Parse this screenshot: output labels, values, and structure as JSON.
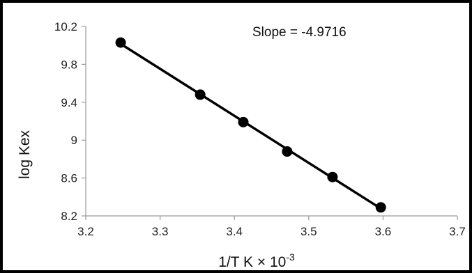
{
  "chart_data": {
    "type": "scatter",
    "title": "",
    "xlabel": "1/T K × 10",
    "xlabel_exponent": "-3",
    "ylabel": "log Kex",
    "annotation": "Slope = -4.9716",
    "xlim": [
      3.2,
      3.7
    ],
    "ylim": [
      8.2,
      10.2
    ],
    "x_ticks": [
      "3.2",
      "3.3",
      "3.4",
      "3.5",
      "3.6",
      "3.7"
    ],
    "y_ticks": [
      "10.2",
      "9.8",
      "9.4",
      "9",
      "8.6",
      "8.2"
    ],
    "x_tick_values": [
      3.2,
      3.3,
      3.4,
      3.5,
      3.6,
      3.7
    ],
    "y_tick_values": [
      10.2,
      9.8,
      9.4,
      9.0,
      8.6,
      8.2
    ],
    "grid": false,
    "legend": "none",
    "series": [
      {
        "x": [
          3.247,
          3.354,
          3.412,
          3.471,
          3.532,
          3.597
        ],
        "y": [
          10.03,
          9.48,
          9.19,
          8.88,
          8.61,
          8.29
        ],
        "marker": "circle",
        "color": "#000000",
        "trendline": "linear"
      }
    ]
  }
}
